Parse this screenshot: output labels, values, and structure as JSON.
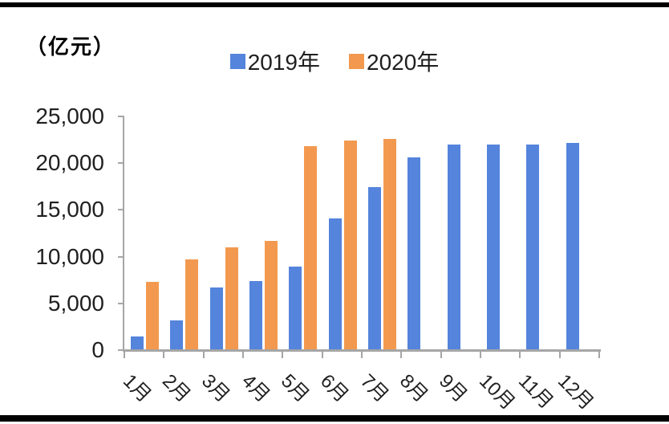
{
  "chart_data": {
    "type": "bar",
    "title": "",
    "unit_label": "（亿元）",
    "categories": [
      "1月",
      "2月",
      "3月",
      "4月",
      "5月",
      "6月",
      "7月",
      "8月",
      "9月",
      "10月",
      "11月",
      "12月"
    ],
    "series": [
      {
        "name": "2019年",
        "color": "#5484DC",
        "values": [
          1500,
          3200,
          6700,
          7400,
          8900,
          14100,
          17400,
          20600,
          22000,
          22000,
          22000,
          22200
        ]
      },
      {
        "name": "2020年",
        "color": "#F2994F",
        "values": [
          7300,
          9700,
          11000,
          11700,
          21800,
          22400,
          22600,
          null,
          null,
          null,
          null,
          null
        ]
      }
    ],
    "ylim": [
      0,
      25000
    ],
    "yticks": [
      0,
      5000,
      10000,
      15000,
      20000,
      25000
    ],
    "ytick_labels": [
      "0",
      "5,000",
      "10,000",
      "15,000",
      "20,000",
      "25,000"
    ],
    "legend_position": "top-center",
    "grid": false,
    "axis_color": "#A6A6A6",
    "text_color": "#1F1F1F",
    "border_rule_color": "#000000"
  }
}
